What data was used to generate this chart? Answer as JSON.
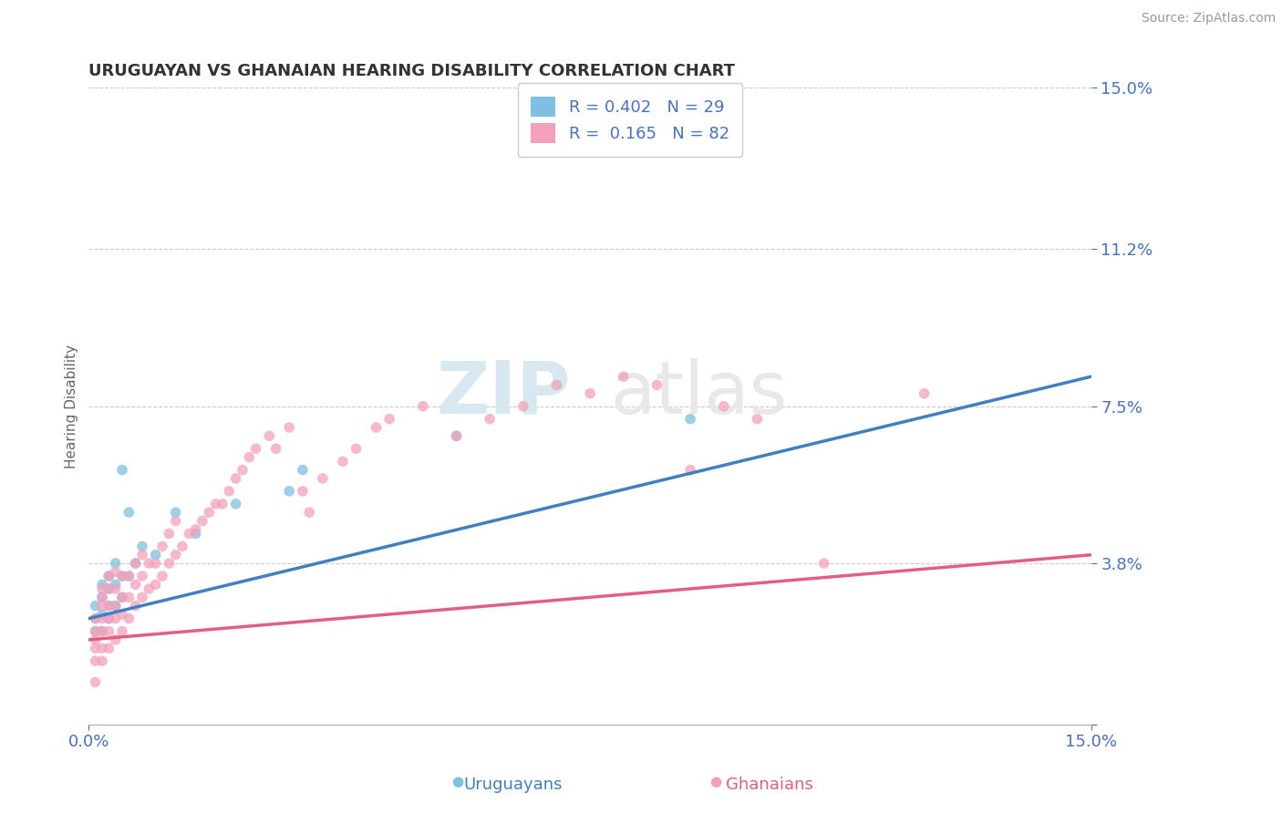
{
  "title": "URUGUAYAN VS GHANAIAN HEARING DISABILITY CORRELATION CHART",
  "source": "Source: ZipAtlas.com",
  "ylabel": "Hearing Disability",
  "xlim": [
    0.0,
    0.15
  ],
  "ylim": [
    0.0,
    0.15
  ],
  "yticks": [
    0.0,
    0.038,
    0.075,
    0.112,
    0.15
  ],
  "ytick_labels": [
    "",
    "3.8%",
    "7.5%",
    "11.2%",
    "15.0%"
  ],
  "xtick_labels": [
    "0.0%",
    "15.0%"
  ],
  "legend_label1": "R = 0.402   N = 29",
  "legend_label2": "R =  0.165   N = 82",
  "color_blue": "#7fbfdf",
  "color_pink": "#f4a0bb",
  "color_blue_line": "#4080c0",
  "color_pink_line": "#e06080",
  "watermark_zip": "ZIP",
  "watermark_atlas": "atlas",
  "title_fontsize": 13,
  "tick_label_color": "#4472c4",
  "grid_color": "#cccccc",
  "background_color": "#ffffff",
  "legend_fontsize": 13,
  "uruguayan_x": [
    0.001,
    0.001,
    0.001,
    0.002,
    0.002,
    0.002,
    0.002,
    0.003,
    0.003,
    0.003,
    0.003,
    0.004,
    0.004,
    0.004,
    0.005,
    0.005,
    0.005,
    0.006,
    0.006,
    0.007,
    0.008,
    0.01,
    0.013,
    0.016,
    0.022,
    0.03,
    0.032,
    0.055,
    0.09
  ],
  "uruguayan_y": [
    0.022,
    0.025,
    0.028,
    0.022,
    0.026,
    0.03,
    0.033,
    0.025,
    0.028,
    0.032,
    0.035,
    0.028,
    0.033,
    0.038,
    0.03,
    0.035,
    0.06,
    0.035,
    0.05,
    0.038,
    0.042,
    0.04,
    0.05,
    0.045,
    0.052,
    0.055,
    0.06,
    0.068,
    0.072
  ],
  "ghanaian_x": [
    0.001,
    0.001,
    0.001,
    0.001,
    0.001,
    0.001,
    0.002,
    0.002,
    0.002,
    0.002,
    0.002,
    0.002,
    0.002,
    0.003,
    0.003,
    0.003,
    0.003,
    0.003,
    0.003,
    0.004,
    0.004,
    0.004,
    0.004,
    0.004,
    0.005,
    0.005,
    0.005,
    0.005,
    0.006,
    0.006,
    0.006,
    0.007,
    0.007,
    0.007,
    0.008,
    0.008,
    0.008,
    0.009,
    0.009,
    0.01,
    0.01,
    0.011,
    0.011,
    0.012,
    0.012,
    0.013,
    0.013,
    0.014,
    0.015,
    0.016,
    0.017,
    0.018,
    0.019,
    0.02,
    0.021,
    0.022,
    0.023,
    0.024,
    0.025,
    0.027,
    0.028,
    0.03,
    0.032,
    0.033,
    0.035,
    0.038,
    0.04,
    0.043,
    0.045,
    0.05,
    0.055,
    0.06,
    0.065,
    0.07,
    0.075,
    0.08,
    0.085,
    0.09,
    0.095,
    0.1,
    0.11,
    0.125
  ],
  "ghanaian_y": [
    0.01,
    0.015,
    0.018,
    0.02,
    0.022,
    0.025,
    0.015,
    0.018,
    0.022,
    0.025,
    0.028,
    0.03,
    0.032,
    0.018,
    0.022,
    0.025,
    0.028,
    0.032,
    0.035,
    0.02,
    0.025,
    0.028,
    0.032,
    0.036,
    0.022,
    0.026,
    0.03,
    0.035,
    0.025,
    0.03,
    0.035,
    0.028,
    0.033,
    0.038,
    0.03,
    0.035,
    0.04,
    0.032,
    0.038,
    0.033,
    0.038,
    0.035,
    0.042,
    0.038,
    0.045,
    0.04,
    0.048,
    0.042,
    0.045,
    0.046,
    0.048,
    0.05,
    0.052,
    0.052,
    0.055,
    0.058,
    0.06,
    0.063,
    0.065,
    0.068,
    0.065,
    0.07,
    0.055,
    0.05,
    0.058,
    0.062,
    0.065,
    0.07,
    0.072,
    0.075,
    0.068,
    0.072,
    0.075,
    0.08,
    0.078,
    0.082,
    0.08,
    0.06,
    0.075,
    0.072,
    0.038,
    0.078
  ]
}
